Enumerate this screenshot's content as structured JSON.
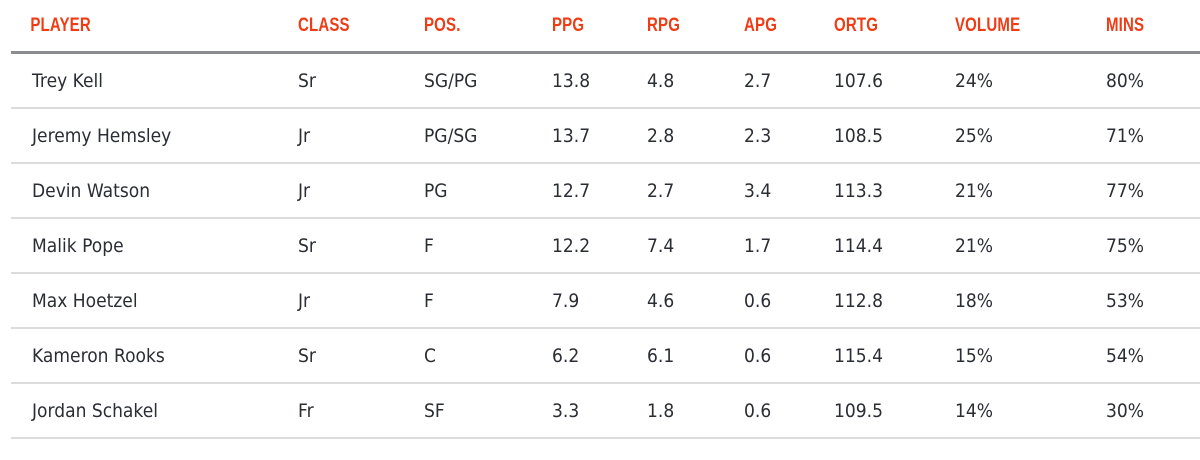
{
  "table": {
    "header_color": "#f03c14",
    "columns": [
      "PLAYER",
      "CLASS",
      "POS.",
      "PPG",
      "RPG",
      "APG",
      "ORTG",
      "VOLUME",
      "MINS"
    ],
    "rows": [
      [
        "Trey Kell",
        "Sr",
        "SG/PG",
        "13.8",
        "4.8",
        "2.7",
        "107.6",
        "24%",
        "80%"
      ],
      [
        "Jeremy Hemsley",
        "Jr",
        "PG/SG",
        "13.7",
        "2.8",
        "2.3",
        "108.5",
        "25%",
        "71%"
      ],
      [
        "Devin Watson",
        "Jr",
        "PG",
        "12.7",
        "2.7",
        "3.4",
        "113.3",
        "21%",
        "77%"
      ],
      [
        "Malik Pope",
        "Sr",
        "F",
        "12.2",
        "7.4",
        "1.7",
        "114.4",
        "21%",
        "75%"
      ],
      [
        "Max Hoetzel",
        "Jr",
        "F",
        "7.9",
        "4.6",
        "0.6",
        "112.8",
        "18%",
        "53%"
      ],
      [
        "Kameron Rooks",
        "Sr",
        "C",
        "6.2",
        "6.1",
        "0.6",
        "115.4",
        "15%",
        "54%"
      ],
      [
        "Jordan Schakel",
        "Fr",
        "SF",
        "3.3",
        "1.8",
        "0.6",
        "109.5",
        "14%",
        "30%"
      ]
    ]
  }
}
